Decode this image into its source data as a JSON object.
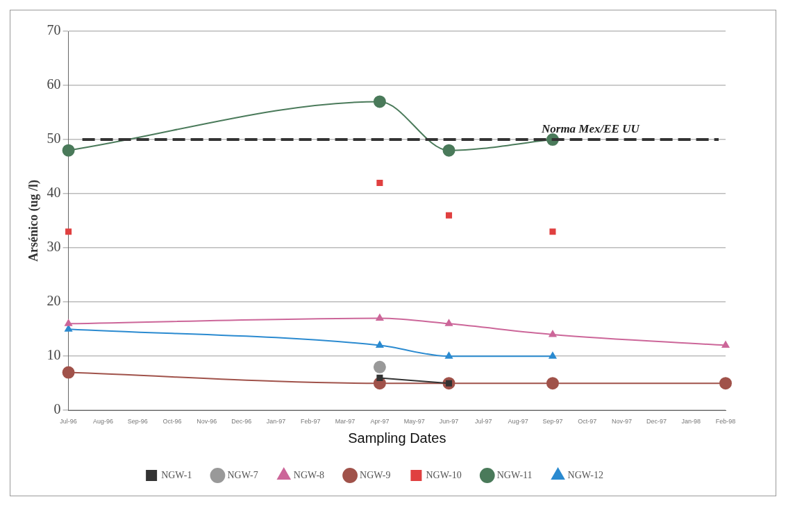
{
  "chart_data": {
    "type": "line",
    "xlabel": "Sampling Dates",
    "ylabel": "Arsénico (ug /l)",
    "categories": [
      "Jul-96",
      "Aug-96",
      "Sep-96",
      "Oct-96",
      "Nov-96",
      "Dec-96",
      "Jan-97",
      "Feb-97",
      "Mar-97",
      "Apr-97",
      "May-97",
      "Jun-97",
      "Jul-97",
      "Aug-97",
      "Sep-97",
      "Oct-97",
      "Nov-97",
      "Dec-97",
      "Jan-98",
      "Feb-98"
    ],
    "series": [
      {
        "name": "NGW-1",
        "color": "#333333",
        "marker": "square",
        "values": [
          null,
          null,
          null,
          null,
          null,
          null,
          null,
          null,
          null,
          6,
          null,
          5,
          null,
          null,
          null,
          null,
          null,
          null,
          null,
          null
        ]
      },
      {
        "name": "NGW-7",
        "color": "#999999",
        "marker": "circle",
        "values": [
          null,
          null,
          null,
          null,
          null,
          null,
          null,
          null,
          null,
          8,
          null,
          null,
          null,
          null,
          null,
          null,
          null,
          null,
          null,
          null
        ]
      },
      {
        "name": "NGW-8",
        "color": "#cc6699",
        "marker": "triangle",
        "values": [
          16,
          null,
          null,
          null,
          null,
          null,
          null,
          null,
          null,
          17,
          null,
          16,
          null,
          null,
          14,
          null,
          null,
          null,
          null,
          12
        ]
      },
      {
        "name": "NGW-9",
        "color": "#a0524a",
        "marker": "circle",
        "values": [
          7,
          null,
          null,
          null,
          null,
          null,
          null,
          null,
          null,
          5,
          null,
          5,
          null,
          null,
          5,
          null,
          null,
          null,
          null,
          5
        ]
      },
      {
        "name": "NGW-10",
        "type": "scatter",
        "color": "#e04040",
        "marker": "square",
        "values": [
          33,
          null,
          null,
          null,
          null,
          null,
          null,
          null,
          null,
          42,
          null,
          36,
          null,
          null,
          33,
          null,
          null,
          null,
          null,
          null
        ]
      },
      {
        "name": "NGW-11",
        "color": "#4a7a5a",
        "marker": "circle",
        "values": [
          48,
          null,
          null,
          null,
          null,
          null,
          null,
          null,
          null,
          57,
          null,
          48,
          null,
          null,
          50,
          null,
          null,
          null,
          null,
          null
        ]
      },
      {
        "name": "NGW-12",
        "color": "#2a8ad0",
        "marker": "triangle",
        "values": [
          15,
          null,
          null,
          null,
          null,
          null,
          null,
          null,
          null,
          12,
          null,
          10,
          null,
          null,
          10,
          null,
          null,
          null,
          null,
          null
        ]
      }
    ],
    "ylim": [
      0,
      70
    ],
    "yticks": [
      0,
      10,
      20,
      30,
      40,
      50,
      60,
      70
    ],
    "grid": "y",
    "legend": "bottom",
    "ref_lines": [
      {
        "axis": "y",
        "value": 50,
        "label": "Norma Mex/EE UU",
        "color": "#333333",
        "line_style": "dashed"
      }
    ]
  }
}
